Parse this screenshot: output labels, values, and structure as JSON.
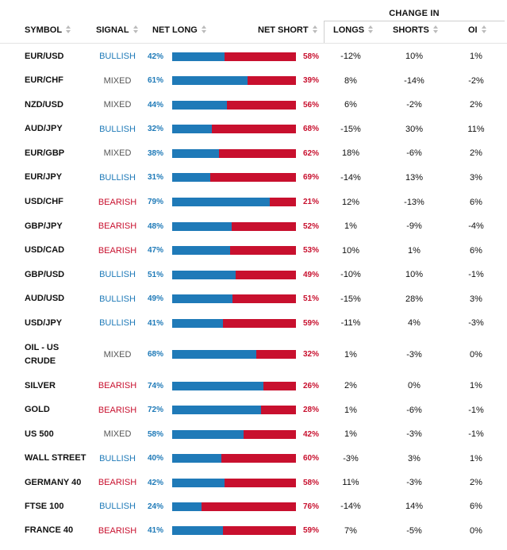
{
  "header": {
    "change_in": "CHANGE IN",
    "symbol": "SYMBOL",
    "signal": "SIGNAL",
    "net_long": "NET LONG",
    "net_short": "NET SHORT",
    "longs": "LONGS",
    "shorts": "SHORTS",
    "oi": "OI"
  },
  "rows": [
    {
      "symbol": "EUR/USD",
      "signal": "BULLISH",
      "long": "42%",
      "short": "58%",
      "long_pct": 42,
      "longs": "-12%",
      "shorts": "10%",
      "oi": "1%"
    },
    {
      "symbol": "EUR/CHF",
      "signal": "MIXED",
      "long": "61%",
      "short": "39%",
      "long_pct": 61,
      "longs": "8%",
      "shorts": "-14%",
      "oi": "-2%"
    },
    {
      "symbol": "NZD/USD",
      "signal": "MIXED",
      "long": "44%",
      "short": "56%",
      "long_pct": 44,
      "longs": "6%",
      "shorts": "-2%",
      "oi": "2%"
    },
    {
      "symbol": "AUD/JPY",
      "signal": "BULLISH",
      "long": "32%",
      "short": "68%",
      "long_pct": 32,
      "longs": "-15%",
      "shorts": "30%",
      "oi": "11%"
    },
    {
      "symbol": "EUR/GBP",
      "signal": "MIXED",
      "long": "38%",
      "short": "62%",
      "long_pct": 38,
      "longs": "18%",
      "shorts": "-6%",
      "oi": "2%"
    },
    {
      "symbol": "EUR/JPY",
      "signal": "BULLISH",
      "long": "31%",
      "short": "69%",
      "long_pct": 31,
      "longs": "-14%",
      "shorts": "13%",
      "oi": "3%"
    },
    {
      "symbol": "USD/CHF",
      "signal": "BEARISH",
      "long": "79%",
      "short": "21%",
      "long_pct": 79,
      "longs": "12%",
      "shorts": "-13%",
      "oi": "6%"
    },
    {
      "symbol": "GBP/JPY",
      "signal": "BEARISH",
      "long": "48%",
      "short": "52%",
      "long_pct": 48,
      "longs": "1%",
      "shorts": "-9%",
      "oi": "-4%"
    },
    {
      "symbol": "USD/CAD",
      "signal": "BEARISH",
      "long": "47%",
      "short": "53%",
      "long_pct": 47,
      "longs": "10%",
      "shorts": "1%",
      "oi": "6%"
    },
    {
      "symbol": "GBP/USD",
      "signal": "BULLISH",
      "long": "51%",
      "short": "49%",
      "long_pct": 51,
      "longs": "-10%",
      "shorts": "10%",
      "oi": "-1%"
    },
    {
      "symbol": "AUD/USD",
      "signal": "BULLISH",
      "long": "49%",
      "short": "51%",
      "long_pct": 49,
      "longs": "-15%",
      "shorts": "28%",
      "oi": "3%"
    },
    {
      "symbol": "USD/JPY",
      "signal": "BULLISH",
      "long": "41%",
      "short": "59%",
      "long_pct": 41,
      "longs": "-11%",
      "shorts": "4%",
      "oi": "-3%"
    },
    {
      "symbol": "OIL - US CRUDE",
      "signal": "MIXED",
      "long": "68%",
      "short": "32%",
      "long_pct": 68,
      "longs": "1%",
      "shorts": "-3%",
      "oi": "0%"
    },
    {
      "symbol": "SILVER",
      "signal": "BEARISH",
      "long": "74%",
      "short": "26%",
      "long_pct": 74,
      "longs": "2%",
      "shorts": "0%",
      "oi": "1%"
    },
    {
      "symbol": "GOLD",
      "signal": "BEARISH",
      "long": "72%",
      "short": "28%",
      "long_pct": 72,
      "longs": "1%",
      "shorts": "-6%",
      "oi": "-1%"
    },
    {
      "symbol": "US 500",
      "signal": "MIXED",
      "long": "58%",
      "short": "42%",
      "long_pct": 58,
      "longs": "1%",
      "shorts": "-3%",
      "oi": "-1%"
    },
    {
      "symbol": "WALL STREET",
      "signal": "BULLISH",
      "long": "40%",
      "short": "60%",
      "long_pct": 40,
      "longs": "-3%",
      "shorts": "3%",
      "oi": "1%"
    },
    {
      "symbol": "GERMANY 40",
      "signal": "BEARISH",
      "long": "42%",
      "short": "58%",
      "long_pct": 42,
      "longs": "11%",
      "shorts": "-3%",
      "oi": "2%"
    },
    {
      "symbol": "FTSE 100",
      "signal": "BULLISH",
      "long": "24%",
      "short": "76%",
      "long_pct": 24,
      "longs": "-14%",
      "shorts": "14%",
      "oi": "6%"
    },
    {
      "symbol": "FRANCE 40",
      "signal": "BEARISH",
      "long": "41%",
      "short": "59%",
      "long_pct": 41,
      "longs": "7%",
      "shorts": "-5%",
      "oi": "0%"
    }
  ],
  "colors": {
    "long": "#1f7ab8",
    "short": "#c8102e",
    "mixed": "#555555"
  }
}
